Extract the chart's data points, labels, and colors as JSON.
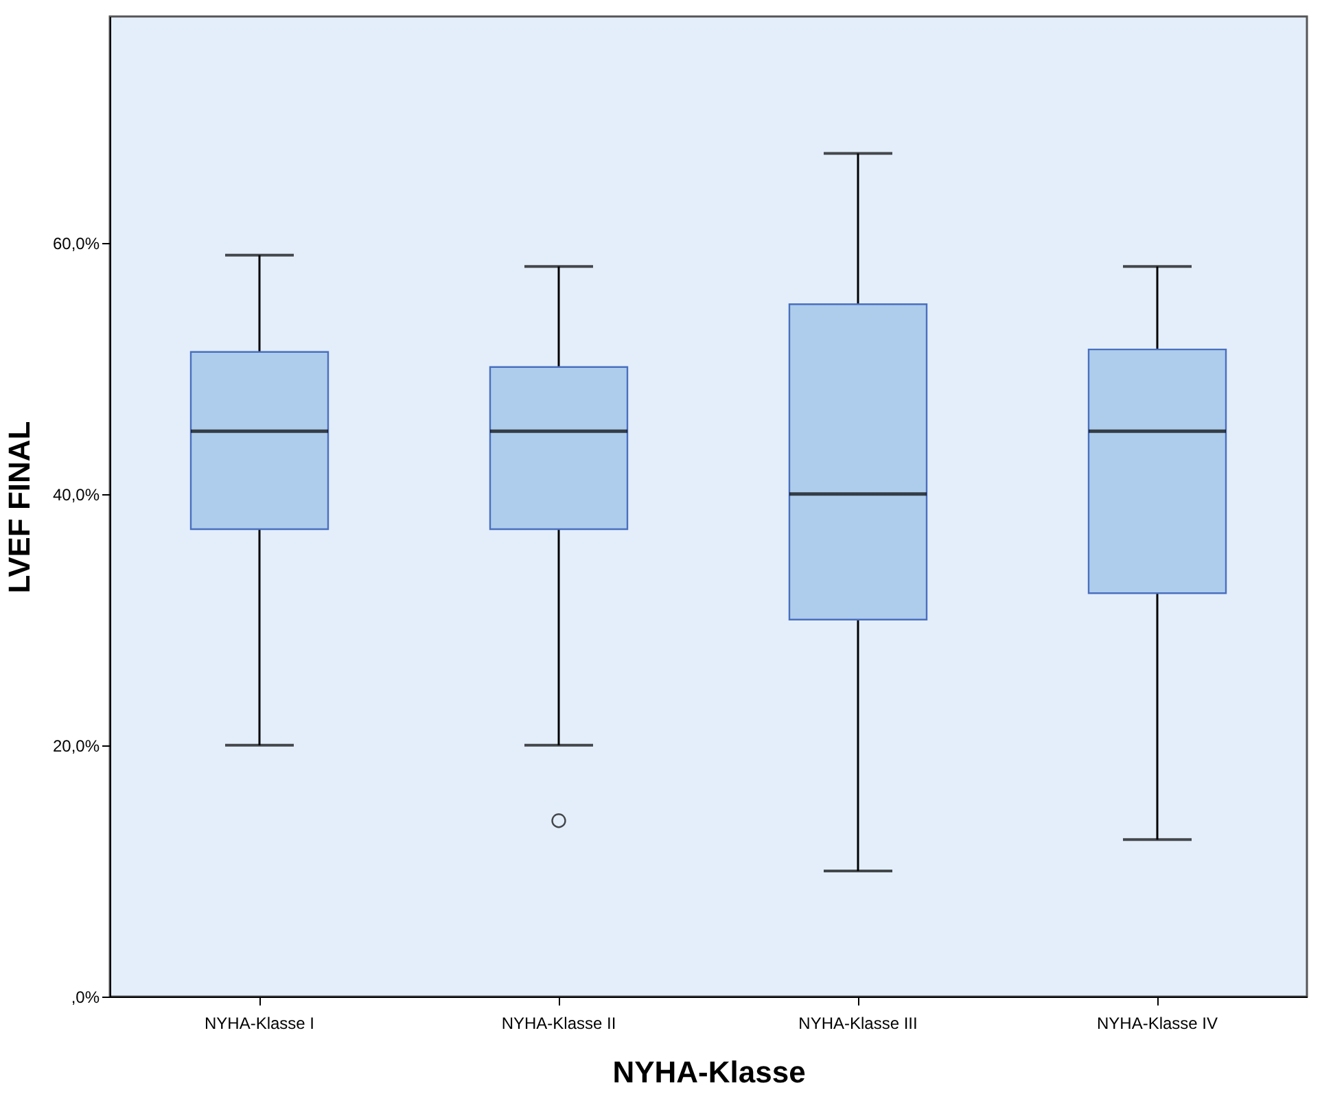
{
  "chart_data": {
    "type": "box",
    "categories": [
      "NYHA-Klasse I",
      "NYHA-Klasse II",
      "NYHA-Klasse III",
      "NYHA-Klasse IV"
    ],
    "series": [
      {
        "color": "#aecdec",
        "boxes": [
          {
            "low": 20,
            "q1": 37.2,
            "median": 45,
            "q3": 51.3,
            "high": 59
          },
          {
            "low": 20,
            "q1": 37.2,
            "median": 45,
            "q3": 50.1,
            "high": 58.1,
            "outliers": [
              14
            ]
          },
          {
            "low": 10,
            "q1": 30,
            "median": 40,
            "q3": 55.1,
            "high": 67.1
          },
          {
            "low": 12.5,
            "q1": 32.1,
            "median": 45,
            "q3": 51.5,
            "high": 58.1
          }
        ]
      }
    ],
    "xlabel": "NYHA-Klasse",
    "ylabel": "LVEF FINAL",
    "ylim": [
      0,
      78
    ],
    "yticks": [
      {
        "value": 0,
        "label": ",0%"
      },
      {
        "value": 20,
        "label": "20,0%"
      },
      {
        "value": 40,
        "label": "40,0%"
      },
      {
        "value": 60,
        "label": "60,0%"
      }
    ],
    "grid": false
  }
}
